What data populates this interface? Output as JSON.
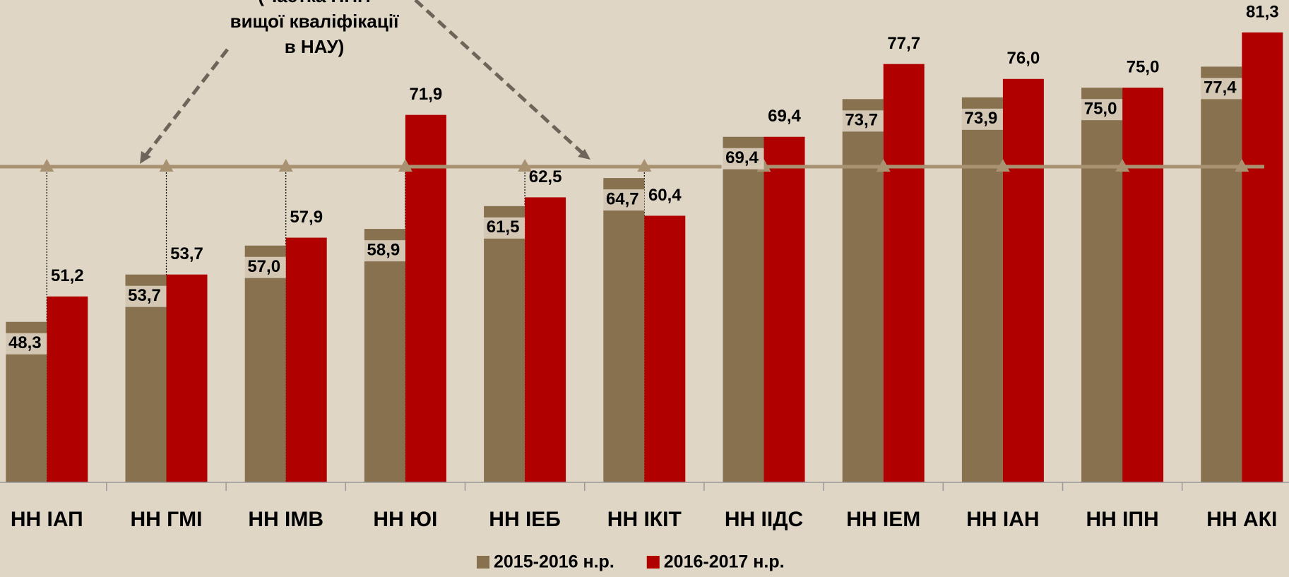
{
  "chart_data": {
    "type": "bar",
    "annotation": [
      "(Частка НПП",
      "вищої кваліфікації",
      "в НАУ)"
    ],
    "categories": [
      "НН ІАП",
      "НН ГМІ",
      "НН ІМВ",
      "НН ЮІ",
      "НН ІЕБ",
      "НН ІКІТ",
      "НН ІІДС",
      "НН ІЕМ",
      "НН ІАН",
      "НН ІПН",
      "НН АКІ"
    ],
    "series": [
      {
        "name": "2015-2016 н.р.",
        "color": "#87714f",
        "values": [
          48.3,
          53.7,
          57.0,
          58.9,
          61.5,
          64.7,
          69.4,
          73.7,
          73.9,
          75.0,
          77.4
        ],
        "value_labels": [
          "48,3",
          "53,7",
          "57,0",
          "58,9",
          "61,5",
          "64,7",
          "69,4",
          "73,7",
          "73,9",
          "75,0",
          "77,4"
        ]
      },
      {
        "name": "2016-2017 н.р.",
        "color": "#b00000",
        "values": [
          51.2,
          53.7,
          57.9,
          71.9,
          62.5,
          60.4,
          69.4,
          77.7,
          76.0,
          75.0,
          81.3
        ],
        "value_labels": [
          "51,2",
          "53,7",
          "57,9",
          "71,9",
          "62,5",
          "60,4",
          "69,4",
          "77,7",
          "76,0",
          "75,0",
          "81,3"
        ]
      }
    ],
    "reference_value": 66,
    "reference_color": "#a89272",
    "ylim": [
      30,
      85
    ]
  }
}
